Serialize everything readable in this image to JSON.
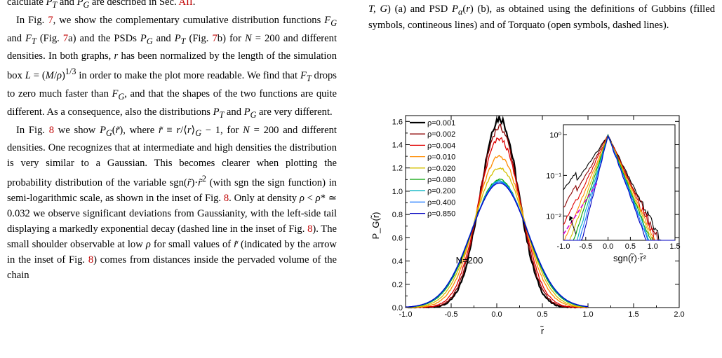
{
  "left_text": {
    "line0": "calculate P_T and P_G are described in Sec. AII.",
    "para1": "In Fig. 7, we show the complementary cumulative distribution functions F_G and F_T (Fig. 7a) and the PSDs P_G and P_T (Fig. 7b) for N = 200 and different densities. In both graphs, r has been normalized by the length of the simulation box L = (M/ρ)^1/3 in order to make the plot more readable. We find that F_T drops to zero much faster than F_G, and that the shapes of the two functions are quite different. As a consequence, also the distributions P_T and P_G are very different.",
    "para2": "In Fig. 8 we show P_G(r̃), where r̃ ≡ r/⟨r⟩_G − 1, for N = 200 and different densities. One recognizes that at intermediate and high densities the distribution is very similar to a Gaussian. This becomes clearer when plotting the probability distribution of the variable sgn(r̃)·r̃² (with sgn the sign function) in semi-logarithmic scale, as shown in the inset of Fig. 8. Only at density ρ < ρ* ≃ 0.032 we observe significant deviations from Gaussianity, with the left-side tail displaying a markedly exponential decay (dashed line in the inset of Fig. 8). The small shoulder observable at low ρ for small values of r̃ (indicated by the arrow in the inset of Fig. 8) comes from distances inside the pervaded volume of the chain"
  },
  "caption_text": "T, G) (a) and PSD P_α(r) (b), as obtained using the definitions of Gubbins (filled symbols, contineous lines) and of Torquato (open symbols, dashed lines).",
  "chart_data": {
    "type": "line",
    "xlabel": "r̃",
    "ylabel": "P_G(r̃)",
    "xlim": [
      -1.0,
      2.0
    ],
    "ylim": [
      0.0,
      1.65
    ],
    "x_ticks": [
      "-1.0",
      "-0.5",
      "0.0",
      "0.5",
      "1.0",
      "1.5",
      "2.0"
    ],
    "y_ticks": [
      "0.0",
      "0.2",
      "0.4",
      "0.6",
      "0.8",
      "1.0",
      "1.2",
      "1.4",
      "1.6"
    ],
    "annotation": "N=200",
    "legend_position": "top-left",
    "series": [
      {
        "name": "ρ=0.001",
        "color": "#000000",
        "peak": 1.63,
        "center": 0.03,
        "width": 0.21,
        "stroke": 2.2
      },
      {
        "name": "ρ=0.002",
        "color": "#8b0000",
        "peak": 1.55,
        "center": 0.03,
        "width": 0.22,
        "stroke": 1.3
      },
      {
        "name": "ρ=0.004",
        "color": "#e00000",
        "peak": 1.45,
        "center": 0.03,
        "width": 0.235,
        "stroke": 1.3
      },
      {
        "name": "ρ=0.010",
        "color": "#ff8c00",
        "peak": 1.3,
        "center": 0.03,
        "width": 0.26,
        "stroke": 1.3
      },
      {
        "name": "ρ=0.020",
        "color": "#d4c000",
        "peak": 1.2,
        "center": 0.03,
        "width": 0.28,
        "stroke": 1.3
      },
      {
        "name": "ρ=0.080",
        "color": "#00a000",
        "peak": 1.1,
        "center": 0.03,
        "width": 0.3,
        "stroke": 1.3
      },
      {
        "name": "ρ=0.200",
        "color": "#00b0c0",
        "peak": 1.09,
        "center": 0.03,
        "width": 0.305,
        "stroke": 1.3
      },
      {
        "name": "ρ=0.400",
        "color": "#1070ff",
        "peak": 1.08,
        "center": 0.03,
        "width": 0.31,
        "stroke": 1.3
      },
      {
        "name": "ρ=0.850",
        "color": "#0000c0",
        "peak": 1.07,
        "center": 0.03,
        "width": 0.31,
        "stroke": 1.3
      }
    ],
    "inset": {
      "xlabel": "sgn(r̃)·r̃²",
      "xlim": [
        -1.0,
        1.5
      ],
      "x_ticks": [
        "-1.0",
        "-0.5",
        "0.0",
        "0.5",
        "1.0",
        "1.5"
      ],
      "y_scale": "log",
      "y_ticks": [
        "10⁻²",
        "10⁻¹",
        "10⁰"
      ],
      "dashed_fit_color": "#d000d0"
    }
  }
}
